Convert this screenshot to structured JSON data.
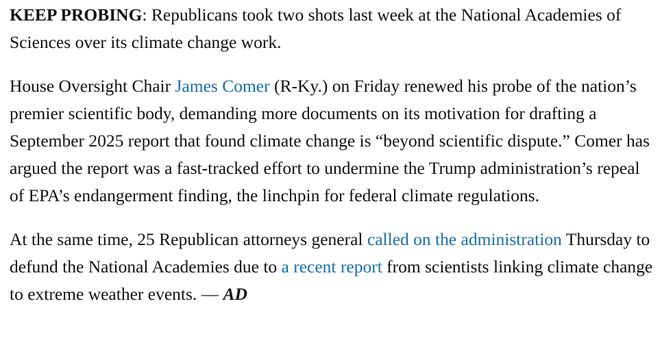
{
  "paragraphs": [
    [
      "KEEP PROBING",
      ": Republicans took two shots last week at the National Academies of Sciences over its climate change work."
    ],
    [
      "House Oversight Chair ",
      "James Comer",
      " (R-Ky.) on Friday renewed his probe of the nation’s premier scientific body, demanding more documents on its motivation for drafting a September 2025 report that found climate change is “beyond scientific dispute.” Comer has argued the report was a fast-tracked effort to undermine the Trump administration’s repeal of EPA’s endangerment finding, the linchpin for federal climate regulations."
    ],
    [
      "At the same time, 25 Republican attorneys general ",
      "called on the administration",
      " Thursday to defund the National Academies due to ",
      "a recent report",
      " from scientists linking climate change to extreme weather events. — ",
      "AD"
    ]
  ]
}
